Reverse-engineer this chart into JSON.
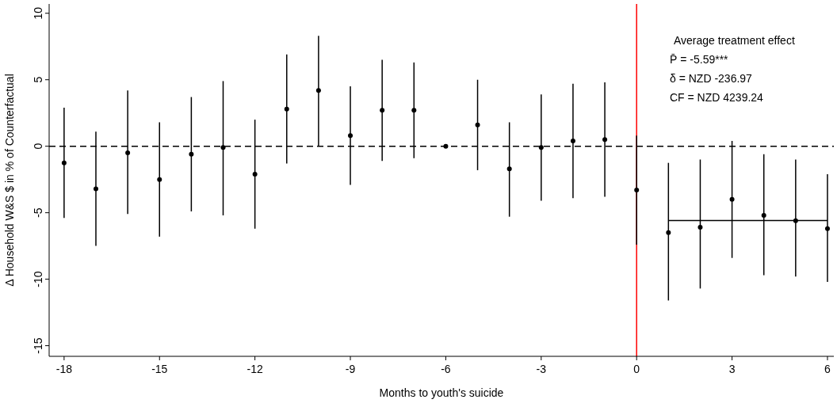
{
  "chart_data": {
    "type": "scatter",
    "xlabel": "Months to youth's suicide",
    "ylabel": "Δ Household W&S $ in % of Counterfactual",
    "xlim": [
      -18.47,
      6.2
    ],
    "ylim": [
      -15.8,
      10.7
    ],
    "xticks": [
      -18,
      -15,
      -12,
      -9,
      -6,
      -3,
      0,
      3,
      6
    ],
    "yticks": [
      10,
      5,
      0,
      -5,
      -10,
      -15
    ],
    "grid": false,
    "series": [
      {
        "color": "#000000",
        "marker": "circle",
        "x": [
          -18,
          -17,
          -16,
          -15,
          -14,
          -13,
          -12,
          -11,
          -10,
          -9,
          -8,
          -7,
          -6,
          -5,
          -4,
          -3,
          -2,
          -1,
          0,
          1,
          2,
          3,
          4,
          5,
          6
        ],
        "values": [
          -1.25,
          -3.2,
          -0.5,
          -2.5,
          -0.6,
          -0.1,
          -2.1,
          2.8,
          4.2,
          0.8,
          2.7,
          2.7,
          0,
          1.6,
          -1.7,
          -0.1,
          0.4,
          0.5,
          -3.3,
          -6.5,
          -6.1,
          -4.0,
          -5.2,
          -5.6,
          -6.2
        ],
        "errors": [
          [
            -5.4,
            2.9
          ],
          [
            -7.5,
            1.1
          ],
          [
            -5.1,
            4.2
          ],
          [
            -6.8,
            1.8
          ],
          [
            -4.9,
            3.7
          ],
          [
            -5.2,
            4.9
          ],
          [
            -6.2,
            2.0
          ],
          [
            -1.3,
            6.9
          ],
          [
            0.0,
            8.3
          ],
          [
            -2.9,
            4.5
          ],
          [
            -1.1,
            6.5
          ],
          [
            -0.9,
            6.3
          ],
          null,
          [
            -1.8,
            5.0
          ],
          [
            -5.3,
            1.8
          ],
          [
            -4.1,
            3.9
          ],
          [
            -3.9,
            4.7
          ],
          [
            -3.8,
            4.8
          ],
          [
            -7.4,
            0.8
          ],
          [
            -11.6,
            -1.25
          ],
          [
            -10.7,
            -1.0
          ],
          [
            -8.4,
            0.4
          ],
          [
            -9.7,
            -0.6
          ],
          [
            -9.8,
            -1.0
          ],
          [
            -10.2,
            -2.1
          ]
        ]
      },
      {
        "type": "line",
        "color": "#000000",
        "line_style": "solid",
        "marker": "none",
        "x": [
          1,
          6
        ],
        "values": [
          -5.59,
          -5.59
        ]
      }
    ],
    "ref_lines": [
      {
        "axis": "y",
        "value": 0,
        "color": "#000000",
        "line_style": "dashed"
      },
      {
        "axis": "x",
        "value": 0,
        "color": "#ff0000",
        "line_style": "solid"
      }
    ],
    "annotations": [
      "Average treatment effect",
      "P̄   = -5.59***",
      "δ    = NZD -236.97",
      "CF = NZD 4239.24"
    ]
  }
}
